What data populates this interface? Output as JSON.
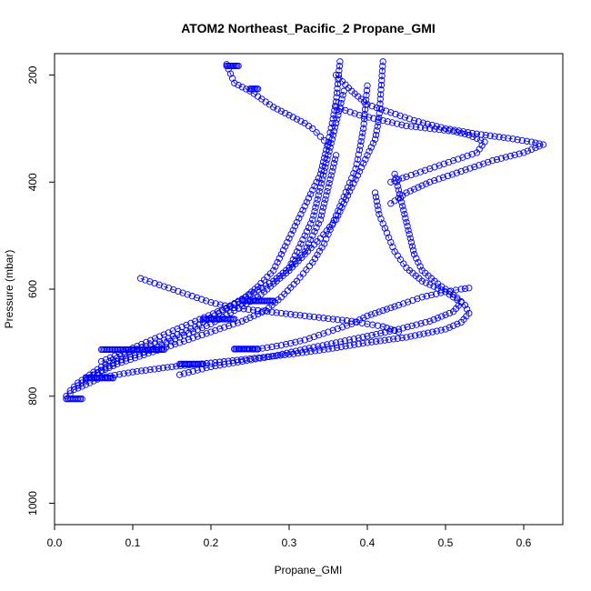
{
  "chart_data": {
    "type": "scatter",
    "title": "ATOM2 Northeast_Pacific_2 Propane_GMI",
    "xlabel": "Propane_GMI",
    "ylabel": "Pressure (mbar)",
    "xlim": [
      0.0,
      0.65
    ],
    "ylim": [
      1040,
      160
    ],
    "y_reversed": true,
    "x_ticks": [
      "0.0",
      "0.1",
      "0.2",
      "0.3",
      "0.4",
      "0.5",
      "0.6"
    ],
    "y_ticks": [
      "200",
      "400",
      "600",
      "800",
      "1000"
    ],
    "grid": false,
    "marker": "open-circle",
    "color": "#0000ff",
    "series": [
      {
        "x": [
          0.015,
          0.02,
          0.03,
          0.05,
          0.07,
          0.1,
          0.14,
          0.18,
          0.21,
          0.24,
          0.26,
          0.28,
          0.29,
          0.3,
          0.31,
          0.32,
          0.33,
          0.34,
          0.345,
          0.35,
          0.355,
          0.36,
          0.365
        ],
        "y": [
          800,
          790,
          775,
          755,
          735,
          715,
          695,
          670,
          645,
          620,
          595,
          565,
          535,
          505,
          475,
          445,
          415,
          385,
          355,
          325,
          290,
          250,
          175
        ]
      },
      {
        "x": [
          0.02,
          0.03,
          0.05,
          0.08,
          0.12,
          0.16,
          0.2,
          0.24,
          0.27,
          0.29,
          0.31,
          0.33,
          0.345,
          0.355,
          0.365,
          0.375,
          0.385,
          0.39,
          0.395,
          0.4
        ],
        "y": [
          795,
          780,
          760,
          740,
          720,
          700,
          680,
          660,
          640,
          615,
          585,
          550,
          515,
          480,
          445,
          410,
          375,
          340,
          300,
          220
        ]
      },
      {
        "x": [
          0.05,
          0.08,
          0.12,
          0.16,
          0.2,
          0.23,
          0.26,
          0.28,
          0.3,
          0.32,
          0.34,
          0.36,
          0.37,
          0.38,
          0.39,
          0.4,
          0.41,
          0.415,
          0.42
        ],
        "y": [
          760,
          735,
          715,
          690,
          665,
          640,
          615,
          590,
          565,
          535,
          505,
          470,
          440,
          410,
          380,
          350,
          320,
          280,
          175
        ]
      },
      {
        "x": [
          0.06,
          0.1,
          0.14,
          0.18,
          0.22,
          0.25,
          0.28,
          0.3,
          0.32,
          0.33,
          0.34,
          0.345,
          0.35,
          0.355,
          0.36
        ],
        "y": [
          735,
          710,
          685,
          660,
          635,
          610,
          585,
          560,
          530,
          500,
          470,
          440,
          410,
          380,
          350
        ]
      },
      {
        "x": [
          0.03,
          0.06,
          0.1,
          0.15,
          0.2,
          0.25,
          0.3,
          0.35,
          0.4,
          0.45,
          0.5,
          0.52,
          0.53,
          0.525,
          0.51,
          0.49,
          0.47,
          0.46,
          0.455,
          0.45,
          0.445,
          0.44,
          0.435
        ],
        "y": [
          785,
          765,
          755,
          745,
          738,
          730,
          722,
          712,
          700,
          690,
          675,
          662,
          645,
          630,
          610,
          590,
          565,
          535,
          505,
          475,
          445,
          415,
          385
        ]
      },
      {
        "x": [
          0.16,
          0.2,
          0.24,
          0.28,
          0.32,
          0.36,
          0.4,
          0.44,
          0.48,
          0.51,
          0.52,
          0.5,
          0.47,
          0.45,
          0.435,
          0.425,
          0.415,
          0.41
        ],
        "y": [
          760,
          745,
          735,
          725,
          712,
          700,
          688,
          675,
          660,
          642,
          625,
          605,
          585,
          560,
          530,
          495,
          460,
          420
        ]
      },
      {
        "x": [
          0.23,
          0.26,
          0.29,
          0.32,
          0.35,
          0.38,
          0.4,
          0.42,
          0.44,
          0.47,
          0.5,
          0.52,
          0.53
        ],
        "y": [
          712,
          712,
          705,
          695,
          680,
          665,
          650,
          640,
          630,
          615,
          605,
          600,
          598
        ]
      },
      {
        "x": [
          0.36,
          0.38,
          0.4,
          0.43,
          0.46,
          0.5,
          0.54,
          0.58,
          0.61,
          0.625,
          0.6,
          0.56,
          0.52,
          0.48,
          0.45,
          0.43
        ],
        "y": [
          200,
          230,
          255,
          270,
          285,
          300,
          310,
          318,
          325,
          330,
          345,
          360,
          380,
          400,
          420,
          440
        ]
      },
      {
        "x": [
          0.36,
          0.39,
          0.42,
          0.45,
          0.48,
          0.51,
          0.53,
          0.55,
          0.54,
          0.51,
          0.48,
          0.45,
          0.43
        ],
        "y": [
          260,
          275,
          285,
          295,
          300,
          305,
          312,
          325,
          345,
          360,
          375,
          390,
          400
        ]
      },
      {
        "x": [
          0.22,
          0.23,
          0.25,
          0.26,
          0.27,
          0.28,
          0.3,
          0.32,
          0.33,
          0.34,
          0.35
        ],
        "y": [
          180,
          215,
          230,
          240,
          250,
          260,
          275,
          290,
          300,
          315,
          330
        ]
      },
      {
        "x": [
          0.3,
          0.31,
          0.32,
          0.33,
          0.335,
          0.34,
          0.345,
          0.35,
          0.355,
          0.36,
          0.365,
          0.37
        ],
        "y": [
          560,
          530,
          500,
          470,
          440,
          410,
          380,
          350,
          320,
          290,
          260,
          230
        ]
      },
      {
        "x": [
          0.11,
          0.14,
          0.17,
          0.2,
          0.23,
          0.26,
          0.29,
          0.32,
          0.35,
          0.38,
          0.4,
          0.42,
          0.43,
          0.44
        ],
        "y": [
          580,
          595,
          610,
          625,
          635,
          640,
          645,
          650,
          655,
          660,
          665,
          670,
          675,
          680
        ]
      }
    ],
    "dense_segments": [
      {
        "x": [
          0.04,
          0.075
        ],
        "y": [
          766,
          766
        ]
      },
      {
        "x": [
          0.06,
          0.14
        ],
        "y": [
          713,
          713
        ]
      },
      {
        "x": [
          0.16,
          0.19
        ],
        "y": [
          740,
          740
        ]
      },
      {
        "x": [
          0.23,
          0.26
        ],
        "y": [
          712,
          712
        ]
      },
      {
        "x": [
          0.19,
          0.23
        ],
        "y": [
          656,
          656
        ]
      },
      {
        "x": [
          0.24,
          0.28
        ],
        "y": [
          622,
          622
        ]
      },
      {
        "x": [
          0.015,
          0.035
        ],
        "y": [
          805,
          805
        ]
      },
      {
        "x": [
          0.22,
          0.235
        ],
        "y": [
          183,
          183
        ]
      },
      {
        "x": [
          0.25,
          0.26
        ],
        "y": [
          226,
          226
        ]
      }
    ]
  }
}
